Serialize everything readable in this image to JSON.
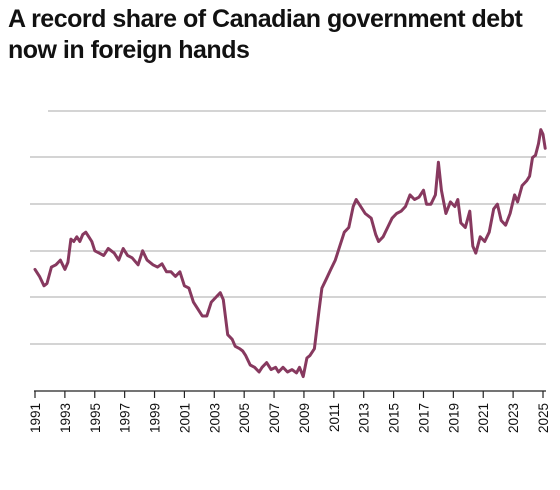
{
  "header": {
    "title_line1": "A record share of Canadian government debt",
    "title_line2": "now in foreign hands"
  },
  "chart_data": {
    "type": "line",
    "title": "A record share of Canadian government debt now in foreign hands",
    "xlabel": "",
    "ylabel": "",
    "x_ticks": [
      "1991",
      "1993",
      "1995",
      "1997",
      "1999",
      "2001",
      "2003",
      "2005",
      "2007",
      "2009",
      "2011",
      "2013",
      "2015",
      "2017",
      "2019",
      "2021",
      "2023",
      "2025"
    ],
    "grid": true,
    "legend": "none",
    "y_axis_labels_visible": false,
    "y_levels": 6,
    "colors": {
      "line": "#87395f",
      "grid": "#a9a9a9",
      "axis": "#222222"
    },
    "series": [
      {
        "points": [
          [
            1991.0,
            1.6
          ],
          [
            1991.3,
            1.45
          ],
          [
            1991.6,
            1.25
          ],
          [
            1991.8,
            1.3
          ],
          [
            1992.1,
            1.65
          ],
          [
            1992.4,
            1.7
          ],
          [
            1992.7,
            1.8
          ],
          [
            1993.0,
            1.6
          ],
          [
            1993.2,
            1.75
          ],
          [
            1993.4,
            2.25
          ],
          [
            1993.6,
            2.2
          ],
          [
            1993.8,
            2.3
          ],
          [
            1994.0,
            2.2
          ],
          [
            1994.2,
            2.35
          ],
          [
            1994.4,
            2.4
          ],
          [
            1994.6,
            2.3
          ],
          [
            1994.8,
            2.2
          ],
          [
            1995.0,
            2.0
          ],
          [
            1995.3,
            1.95
          ],
          [
            1995.6,
            1.9
          ],
          [
            1995.9,
            2.05
          ],
          [
            1996.3,
            1.95
          ],
          [
            1996.6,
            1.8
          ],
          [
            1996.9,
            2.05
          ],
          [
            1997.2,
            1.9
          ],
          [
            1997.5,
            1.85
          ],
          [
            1997.9,
            1.7
          ],
          [
            1998.2,
            2.0
          ],
          [
            1998.5,
            1.8
          ],
          [
            1998.9,
            1.7
          ],
          [
            1999.2,
            1.65
          ],
          [
            1999.5,
            1.72
          ],
          [
            1999.8,
            1.55
          ],
          [
            2000.1,
            1.55
          ],
          [
            2000.4,
            1.45
          ],
          [
            2000.7,
            1.55
          ],
          [
            2001.0,
            1.25
          ],
          [
            2001.3,
            1.2
          ],
          [
            2001.6,
            0.9
          ],
          [
            2001.9,
            0.75
          ],
          [
            2002.2,
            0.6
          ],
          [
            2002.5,
            0.6
          ],
          [
            2002.8,
            0.9
          ],
          [
            2003.1,
            1.0
          ],
          [
            2003.4,
            1.1
          ],
          [
            2003.6,
            0.95
          ],
          [
            2003.9,
            0.2
          ],
          [
            2004.2,
            0.1
          ],
          [
            2004.4,
            -0.05
          ],
          [
            2004.7,
            -0.1
          ],
          [
            2004.9,
            -0.15
          ],
          [
            2005.1,
            -0.25
          ],
          [
            2005.4,
            -0.45
          ],
          [
            2005.7,
            -0.5
          ],
          [
            2006.0,
            -0.6
          ],
          [
            2006.2,
            -0.5
          ],
          [
            2006.5,
            -0.4
          ],
          [
            2006.8,
            -0.55
          ],
          [
            2007.1,
            -0.5
          ],
          [
            2007.3,
            -0.6
          ],
          [
            2007.6,
            -0.5
          ],
          [
            2007.9,
            -0.6
          ],
          [
            2008.2,
            -0.55
          ],
          [
            2008.5,
            -0.62
          ],
          [
            2008.7,
            -0.5
          ],
          [
            2008.95,
            -0.7
          ],
          [
            2009.2,
            -0.3
          ],
          [
            2009.4,
            -0.25
          ],
          [
            2009.7,
            -0.1
          ],
          [
            2010.0,
            0.7
          ],
          [
            2010.2,
            1.2
          ],
          [
            2010.5,
            1.4
          ],
          [
            2010.8,
            1.6
          ],
          [
            2011.1,
            1.8
          ],
          [
            2011.4,
            2.1
          ],
          [
            2011.7,
            2.4
          ],
          [
            2012.0,
            2.5
          ],
          [
            2012.3,
            2.95
          ],
          [
            2012.5,
            3.1
          ],
          [
            2012.8,
            2.95
          ],
          [
            2013.1,
            2.8
          ],
          [
            2013.5,
            2.7
          ],
          [
            2013.8,
            2.35
          ],
          [
            2014.0,
            2.2
          ],
          [
            2014.3,
            2.3
          ],
          [
            2014.6,
            2.5
          ],
          [
            2014.9,
            2.7
          ],
          [
            2015.2,
            2.8
          ],
          [
            2015.5,
            2.85
          ],
          [
            2015.8,
            2.95
          ],
          [
            2016.1,
            3.2
          ],
          [
            2016.4,
            3.1
          ],
          [
            2016.7,
            3.15
          ],
          [
            2017.0,
            3.3
          ],
          [
            2017.2,
            3.0
          ],
          [
            2017.5,
            3.0
          ],
          [
            2017.8,
            3.2
          ],
          [
            2018.0,
            3.9
          ],
          [
            2018.2,
            3.3
          ],
          [
            2018.5,
            2.8
          ],
          [
            2018.8,
            3.05
          ],
          [
            2019.1,
            2.95
          ],
          [
            2019.3,
            3.1
          ],
          [
            2019.5,
            2.6
          ],
          [
            2019.8,
            2.5
          ],
          [
            2020.1,
            2.85
          ],
          [
            2020.3,
            2.1
          ],
          [
            2020.5,
            1.95
          ],
          [
            2020.8,
            2.3
          ],
          [
            2021.1,
            2.2
          ],
          [
            2021.4,
            2.4
          ],
          [
            2021.7,
            2.9
          ],
          [
            2021.95,
            3.0
          ],
          [
            2022.2,
            2.65
          ],
          [
            2022.5,
            2.55
          ],
          [
            2022.8,
            2.8
          ],
          [
            2023.1,
            3.2
          ],
          [
            2023.3,
            3.05
          ],
          [
            2023.6,
            3.4
          ],
          [
            2023.9,
            3.5
          ],
          [
            2024.1,
            3.6
          ],
          [
            2024.3,
            4.0
          ],
          [
            2024.5,
            4.05
          ],
          [
            2024.7,
            4.3
          ],
          [
            2024.85,
            4.6
          ],
          [
            2025.0,
            4.5
          ],
          [
            2025.15,
            4.2
          ]
        ]
      }
    ]
  }
}
